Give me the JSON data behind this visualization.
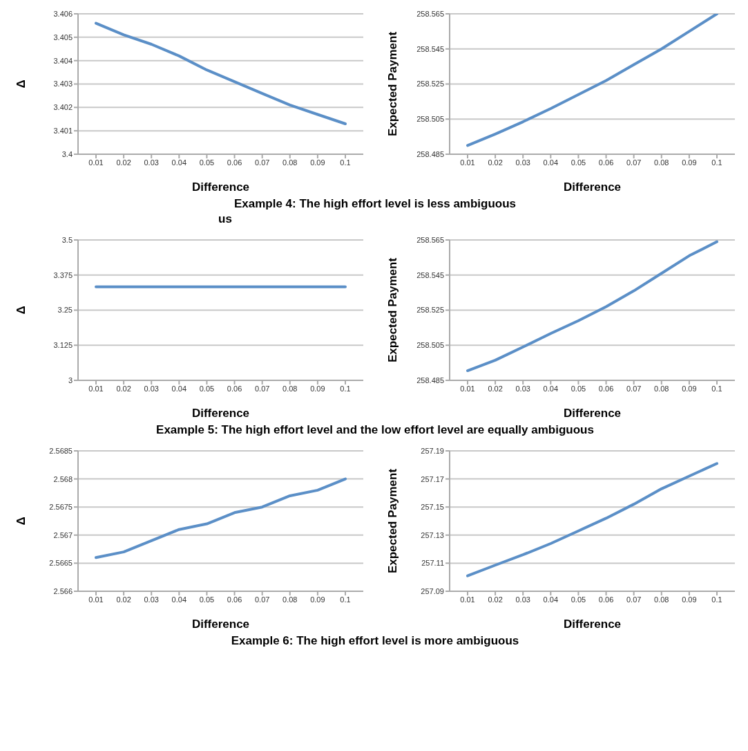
{
  "chart_data": [
    {
      "type": "line",
      "ylabel": "Δ",
      "xlabel": "Difference",
      "categories": [
        "0.01",
        "0.02",
        "0.03",
        "0.04",
        "0.05",
        "0.06",
        "0.07",
        "0.08",
        "0.09",
        "0.1"
      ],
      "series": [
        {
          "color": "#5b8fc7",
          "values": [
            3.4056,
            3.4051,
            3.4047,
            3.4042,
            3.4036,
            3.4031,
            3.4026,
            3.4021,
            3.4017,
            3.4013
          ]
        }
      ],
      "ylim": [
        3.4,
        3.406
      ],
      "yticks": [
        3.4,
        3.401,
        3.402,
        3.403,
        3.404,
        3.405,
        3.406
      ],
      "grid": "y",
      "marker": "none",
      "annotations": [
        "Example 4: The high effort level is less ambiguous",
        "us"
      ]
    },
    {
      "type": "line",
      "ylabel": "Expected Payment",
      "xlabel": "Difference",
      "categories": [
        "0.01",
        "0.02",
        "0.03",
        "0.04",
        "0.05",
        "0.06",
        "0.07",
        "0.08",
        "0.09",
        "0.1"
      ],
      "series": [
        {
          "color": "#5b8fc7",
          "values": [
            258.49,
            258.4965,
            258.5035,
            258.511,
            258.519,
            258.527,
            258.536,
            258.545,
            258.555,
            258.565
          ]
        }
      ],
      "ylim": [
        258.485,
        258.565
      ],
      "yticks": [
        258.485,
        258.505,
        258.525,
        258.545,
        258.565
      ],
      "grid": "y",
      "marker": "none"
    },
    {
      "type": "line",
      "ylabel": "Δ",
      "xlabel": "Difference",
      "categories": [
        "0.01",
        "0.02",
        "0.03",
        "0.04",
        "0.05",
        "0.06",
        "0.07",
        "0.08",
        "0.09",
        "0.1"
      ],
      "series": [
        {
          "color": "#5b8fc7",
          "values": [
            3.333,
            3.333,
            3.333,
            3.333,
            3.333,
            3.333,
            3.333,
            3.333,
            3.333,
            3.333
          ]
        }
      ],
      "ylim": [
        3,
        3.5
      ],
      "yticks": [
        3,
        3.125,
        3.25,
        3.375,
        3.5
      ],
      "grid": "y",
      "marker": "none",
      "annotations": [
        "Example 5: The high effort level and the low effort level are equally ambiguous"
      ]
    },
    {
      "type": "line",
      "ylabel": "Expected Payment",
      "xlabel": "Difference",
      "categories": [
        "0.01",
        "0.02",
        "0.03",
        "0.04",
        "0.05",
        "0.06",
        "0.07",
        "0.08",
        "0.09",
        "0.1"
      ],
      "series": [
        {
          "color": "#5b8fc7",
          "values": [
            258.4905,
            258.4965,
            258.504,
            258.5117,
            258.519,
            258.527,
            258.536,
            258.546,
            258.556,
            258.564
          ]
        }
      ],
      "ylim": [
        258.485,
        258.565
      ],
      "yticks": [
        258.485,
        258.505,
        258.525,
        258.545,
        258.565
      ],
      "grid": "y",
      "marker": "none"
    },
    {
      "type": "line",
      "ylabel": "Δ",
      "xlabel": "Difference",
      "categories": [
        "0.01",
        "0.02",
        "0.03",
        "0.04",
        "0.05",
        "0.06",
        "0.07",
        "0.08",
        "0.09",
        "0.1"
      ],
      "series": [
        {
          "color": "#5b8fc7",
          "values": [
            2.5666,
            2.5667,
            2.5669,
            2.5671,
            2.5672,
            2.5674,
            2.5675,
            2.5677,
            2.5678,
            2.568
          ]
        }
      ],
      "ylim": [
        2.566,
        2.5685
      ],
      "yticks": [
        2.566,
        2.5665,
        2.567,
        2.5675,
        2.568,
        2.5685
      ],
      "grid": "y",
      "marker": "none",
      "annotations": [
        "Example 6: The high effort level is more ambiguous"
      ]
    },
    {
      "type": "line",
      "ylabel": "Expected Payment",
      "xlabel": "Difference",
      "categories": [
        "0.01",
        "0.02",
        "0.03",
        "0.04",
        "0.05",
        "0.06",
        "0.07",
        "0.08",
        "0.09",
        "0.1"
      ],
      "series": [
        {
          "color": "#5b8fc7",
          "values": [
            257.101,
            257.1086,
            257.116,
            257.124,
            257.133,
            257.142,
            257.152,
            257.163,
            257.172,
            257.181
          ]
        }
      ],
      "ylim": [
        257.09,
        257.19
      ],
      "yticks": [
        257.09,
        257.11,
        257.13,
        257.15,
        257.17,
        257.19
      ],
      "grid": "y",
      "marker": "none"
    }
  ]
}
